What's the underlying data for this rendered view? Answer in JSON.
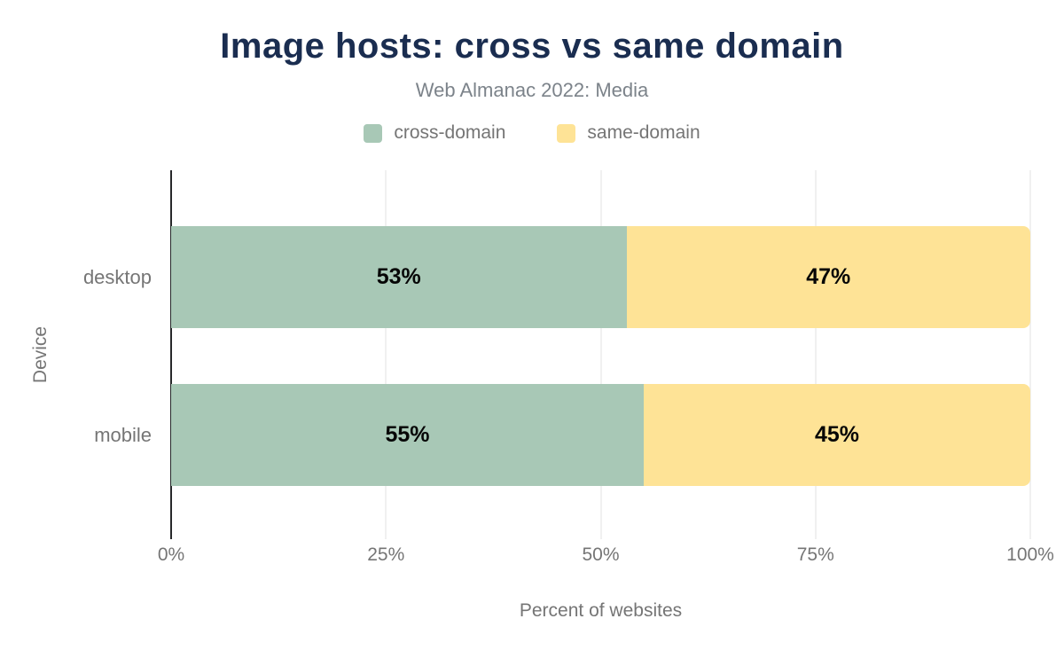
{
  "header": {
    "title": "Image hosts: cross vs same domain",
    "subtitle": "Web Almanac 2022: Media",
    "title_color": "#1a2d50",
    "subtitle_color": "#7c838a"
  },
  "chart_data": {
    "type": "bar",
    "orientation": "horizontal",
    "stacked": true,
    "title": "Image hosts: cross vs same domain",
    "subtitle": "Web Almanac 2022: Media",
    "categories": [
      "desktop",
      "mobile"
    ],
    "series": [
      {
        "name": "cross-domain",
        "color": "#a8c8b6",
        "values": [
          53,
          55
        ]
      },
      {
        "name": "same-domain",
        "color": "#fee396",
        "values": [
          47,
          45
        ]
      }
    ],
    "data_labels": [
      [
        "53%",
        "47%"
      ],
      [
        "55%",
        "45%"
      ]
    ],
    "xlabel": "Percent of websites",
    "ylabel": "Device",
    "xlim": [
      0,
      100
    ],
    "xticks": [
      0,
      25,
      50,
      75,
      100
    ],
    "xtick_labels": [
      "0%",
      "25%",
      "50%",
      "75%",
      "100%"
    ],
    "grid": "vertical-light",
    "axis_line_color": "#27282a",
    "gridline_color": "#f0f0f0",
    "legend_position": "top"
  }
}
